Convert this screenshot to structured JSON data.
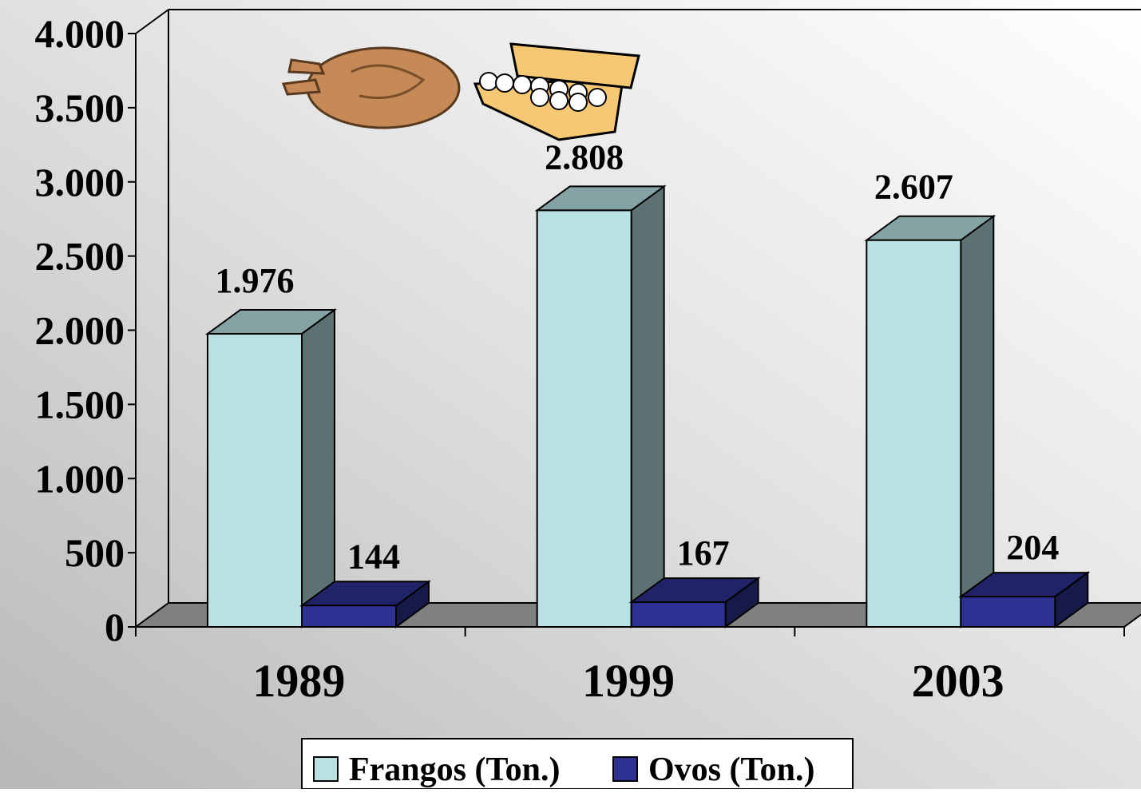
{
  "chart_data": {
    "type": "bar3d",
    "categories": [
      "1989",
      "1999",
      "2003"
    ],
    "series": [
      {
        "name": "Frangos (Ton.)",
        "color": "#b9e1e4",
        "values": [
          1976,
          2808,
          2607
        ],
        "value_labels": [
          "1.976",
          "2.808",
          "2.607"
        ]
      },
      {
        "name": "Ovos (Ton.)",
        "color": "#2e3192",
        "values": [
          144,
          167,
          204
        ]
      }
    ],
    "ylim": [
      0,
      4000
    ],
    "yticks": [
      0,
      500,
      {
        "value": 1000,
        "label": "1.000"
      },
      {
        "value": 1500,
        "label": "1.500"
      },
      {
        "value": 2000,
        "label": "2.000"
      },
      {
        "value": 2500,
        "label": "2.500"
      },
      {
        "value": 3000,
        "label": "3.000"
      },
      {
        "value": 3500,
        "label": "3.500"
      },
      {
        "value": 4000,
        "label": "4.000"
      }
    ],
    "legend": "bottom"
  }
}
